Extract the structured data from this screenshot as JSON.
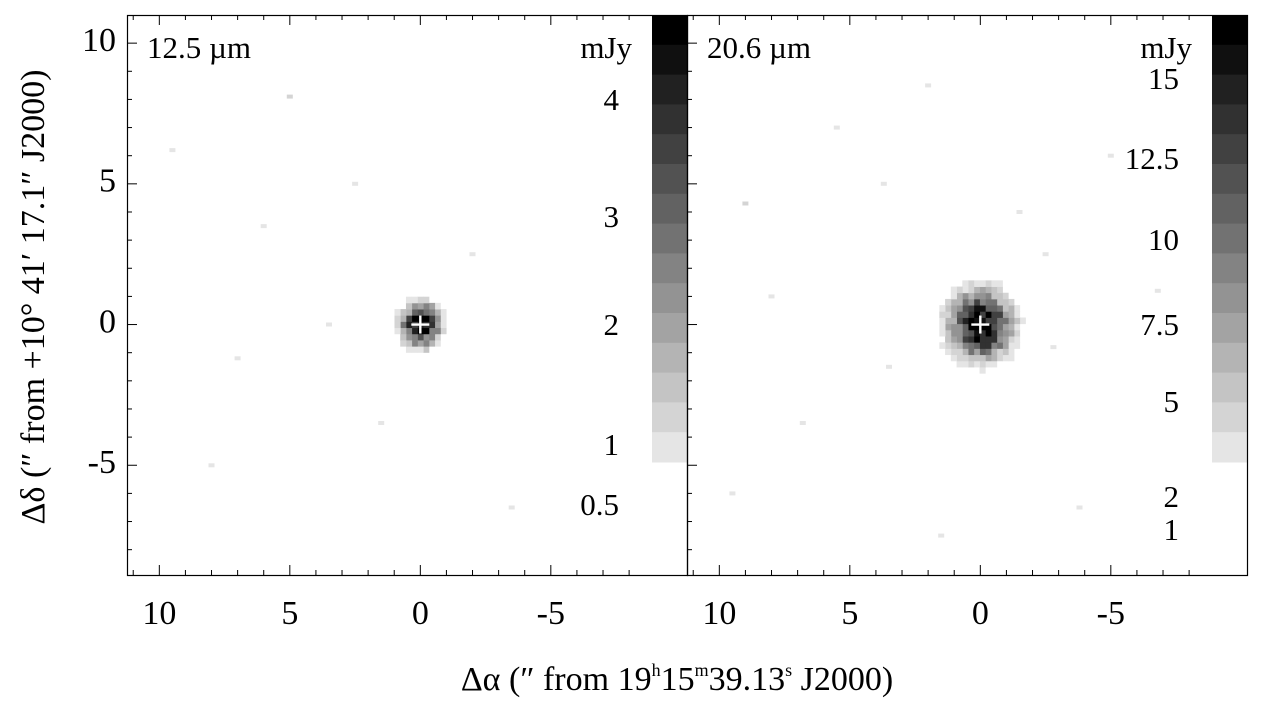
{
  "chart_data": {
    "type": "heatmap",
    "xlabel": {
      "prefix": "Δα (″  from  19",
      "h_sup": "h",
      "mid1": "15",
      "m_sup": "m",
      "mid2": "39.13",
      "s_sup": "s",
      "suffix": " J2000)"
    },
    "ylabel": "Δδ (″ from +10° 41′ 17.1″ J2000)",
    "xlim": [
      11.2,
      -8.8
    ],
    "ylim": [
      -8.9,
      11.0
    ],
    "xticks": [
      10,
      5,
      0,
      -5
    ],
    "xtick_labels": [
      "10",
      "5",
      "0",
      "-5"
    ],
    "yticks": [
      10,
      5,
      0,
      -5
    ],
    "ytick_labels": [
      "10",
      "5",
      "0",
      "-5"
    ],
    "source_marker": {
      "x": 0,
      "y": 0,
      "symbol": "+"
    },
    "panels": [
      {
        "label": "12.5 µm",
        "colorbar": {
          "unit": "mJy",
          "levels": [
            {
              "value": 0.5,
              "label": "0.5"
            },
            {
              "value": 1,
              "label": "1"
            },
            {
              "value": 2,
              "label": "2"
            },
            {
              "value": 3,
              "label": "3"
            },
            {
              "value": 4,
              "label": "4"
            }
          ],
          "vmin": 0.9,
          "vmax": 4.5,
          "steps": 15
        },
        "source": {
          "x": 0,
          "y": 0,
          "peak_mjy": 4.5,
          "sigma_arcsec": 0.55
        },
        "speckles": [
          {
            "x": 5.0,
            "y": 8.1,
            "v": 1.2
          },
          {
            "x": 2.5,
            "y": 5.0,
            "v": 1.1
          },
          {
            "x": 3.5,
            "y": 0.0,
            "v": 1.1
          },
          {
            "x": 9.5,
            "y": 6.2,
            "v": 1.0
          },
          {
            "x": 7.0,
            "y": -1.2,
            "v": 1.0
          },
          {
            "x": 1.5,
            "y": -3.5,
            "v": 1.0
          },
          {
            "x": -2.0,
            "y": 2.5,
            "v": 1.0
          },
          {
            "x": -3.5,
            "y": -6.5,
            "v": 1.0
          },
          {
            "x": 8.0,
            "y": -5.0,
            "v": 1.0
          },
          {
            "x": 6.0,
            "y": 3.5,
            "v": 1.0
          }
        ]
      },
      {
        "label": "20.6 µm",
        "colorbar": {
          "unit": "mJy",
          "levels": [
            {
              "value": 1,
              "label": "1"
            },
            {
              "value": 2,
              "label": "2"
            },
            {
              "value": 5,
              "label": "5"
            },
            {
              "value": 7.5,
              "label": "7.5"
            },
            {
              "value": 10,
              "label": "10"
            },
            {
              "value": 12.5,
              "label": "12.5"
            },
            {
              "value": 15,
              "label": "15"
            }
          ],
          "vmin": 3.0,
          "vmax": 17.0,
          "steps": 15
        },
        "source": {
          "x": 0,
          "y": 0,
          "peak_mjy": 17.0,
          "sigma_arcsec": 0.85
        },
        "speckles": [
          {
            "x": 9.0,
            "y": 4.3,
            "v": 4.0
          },
          {
            "x": 5.5,
            "y": 7.0,
            "v": 3.8
          },
          {
            "x": 3.7,
            "y": 5.0,
            "v": 3.7
          },
          {
            "x": 2.0,
            "y": 8.5,
            "v": 3.6
          },
          {
            "x": -2.5,
            "y": 2.5,
            "v": 3.7
          },
          {
            "x": -5.0,
            "y": 6.0,
            "v": 3.6
          },
          {
            "x": -6.8,
            "y": 1.2,
            "v": 3.8
          },
          {
            "x": -2.8,
            "y": -0.8,
            "v": 3.6
          },
          {
            "x": 6.8,
            "y": -3.5,
            "v": 3.6
          },
          {
            "x": 1.5,
            "y": -7.5,
            "v": 3.6
          },
          {
            "x": -3.8,
            "y": -6.5,
            "v": 3.6
          },
          {
            "x": 8.0,
            "y": 1.0,
            "v": 3.6
          },
          {
            "x": 3.5,
            "y": -1.5,
            "v": 3.6
          },
          {
            "x": -1.5,
            "y": 4.0,
            "v": 3.6
          },
          {
            "x": 9.5,
            "y": -6.0,
            "v": 3.5
          }
        ]
      }
    ]
  }
}
